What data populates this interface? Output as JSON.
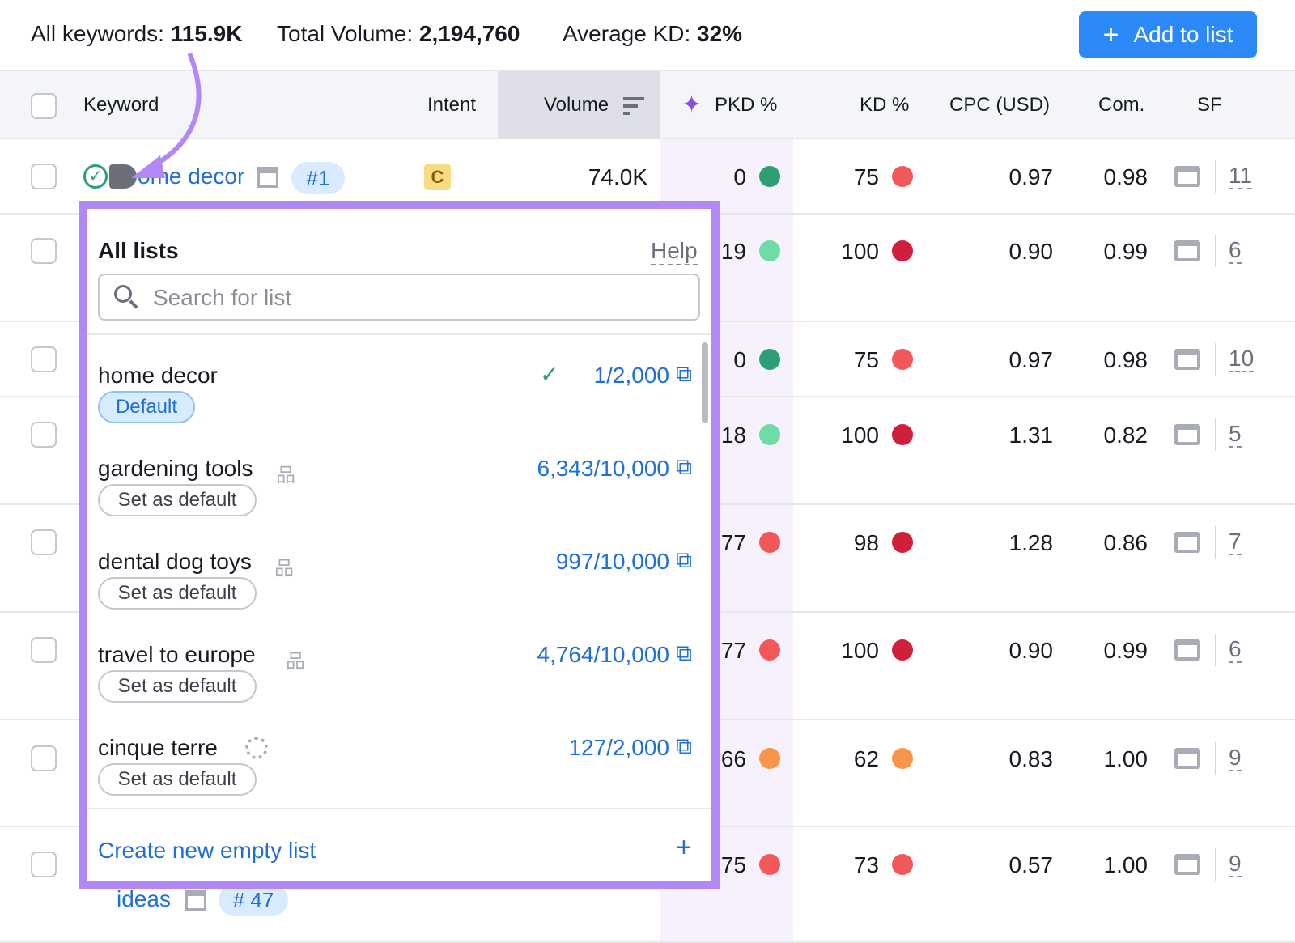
{
  "summary": {
    "all_keywords_label": "All keywords:",
    "all_keywords": "115.9K",
    "total_volume_label": "Total Volume:",
    "total_volume": "2,194,760",
    "avg_kd_label": "Average KD:",
    "avg_kd": "32%"
  },
  "add_button": "Add to list",
  "columns": [
    "Keyword",
    "Intent",
    "Volume",
    "PKD %",
    "KD %",
    "CPC (USD)",
    "Com.",
    "SF"
  ],
  "first_row": {
    "keyword": "ome decor",
    "rank": "#1",
    "intent": "C"
  },
  "last_row": {
    "keyword": "ideas",
    "rank": "# 47"
  },
  "rows": [
    {
      "volume": "74.0K",
      "pkd": "0",
      "pkd_color": "#2e9e75",
      "kd": "75",
      "kd_color": "#f0585a",
      "cpc": "0.97",
      "com": "0.98",
      "sf": "11"
    },
    {
      "pkd": "19",
      "pkd_color": "#6fdca6",
      "kd": "100",
      "kd_color": "#d01f3c",
      "cpc": "0.90",
      "com": "0.99",
      "sf": "6"
    },
    {
      "pkd": "0",
      "pkd_color": "#2e9e75",
      "kd": "75",
      "kd_color": "#f0585a",
      "cpc": "0.97",
      "com": "0.98",
      "sf": "10"
    },
    {
      "pkd": "18",
      "pkd_color": "#6fdca6",
      "kd": "100",
      "kd_color": "#d01f3c",
      "cpc": "1.31",
      "com": "0.82",
      "sf": "5"
    },
    {
      "pkd": "77",
      "pkd_color": "#f0585a",
      "kd": "98",
      "kd_color": "#d01f3c",
      "cpc": "1.28",
      "com": "0.86",
      "sf": "7"
    },
    {
      "pkd": "77",
      "pkd_color": "#f0585a",
      "kd": "100",
      "kd_color": "#d01f3c",
      "cpc": "0.90",
      "com": "0.99",
      "sf": "6"
    },
    {
      "pkd": "66",
      "pkd_color": "#f7954a",
      "kd": "62",
      "kd_color": "#f7954a",
      "cpc": "0.83",
      "com": "1.00",
      "sf": "9"
    },
    {
      "pkd": "75",
      "pkd_color": "#f0585a",
      "kd": "73",
      "kd_color": "#f0585a",
      "cpc": "0.57",
      "com": "1.00",
      "sf": "9"
    }
  ],
  "popup": {
    "title": "All lists",
    "help": "Help",
    "search_placeholder": "Search for list",
    "lists": [
      {
        "name": "home decor",
        "count": "1/2,000",
        "badge": "Default",
        "checked": true,
        "icon": ""
      },
      {
        "name": "gardening tools",
        "count": "6,343/10,000",
        "badge": "Set as default",
        "icon": "sitemap-icon"
      },
      {
        "name": "dental dog toys",
        "count": "997/10,000",
        "badge": "Set as default",
        "icon": "sitemap-icon"
      },
      {
        "name": "travel to europe",
        "count": "4,764/10,000",
        "badge": "Set as default",
        "icon": "sitemap-icon"
      },
      {
        "name": "cinque terre",
        "count": "127/2,000",
        "badge": "Set as default",
        "icon": "loading-icon"
      }
    ],
    "create": "Create new empty list"
  },
  "colors": {
    "accent": "#2b8af7",
    "popup_border": "#b287f6",
    "link": "#1f6fd6"
  }
}
